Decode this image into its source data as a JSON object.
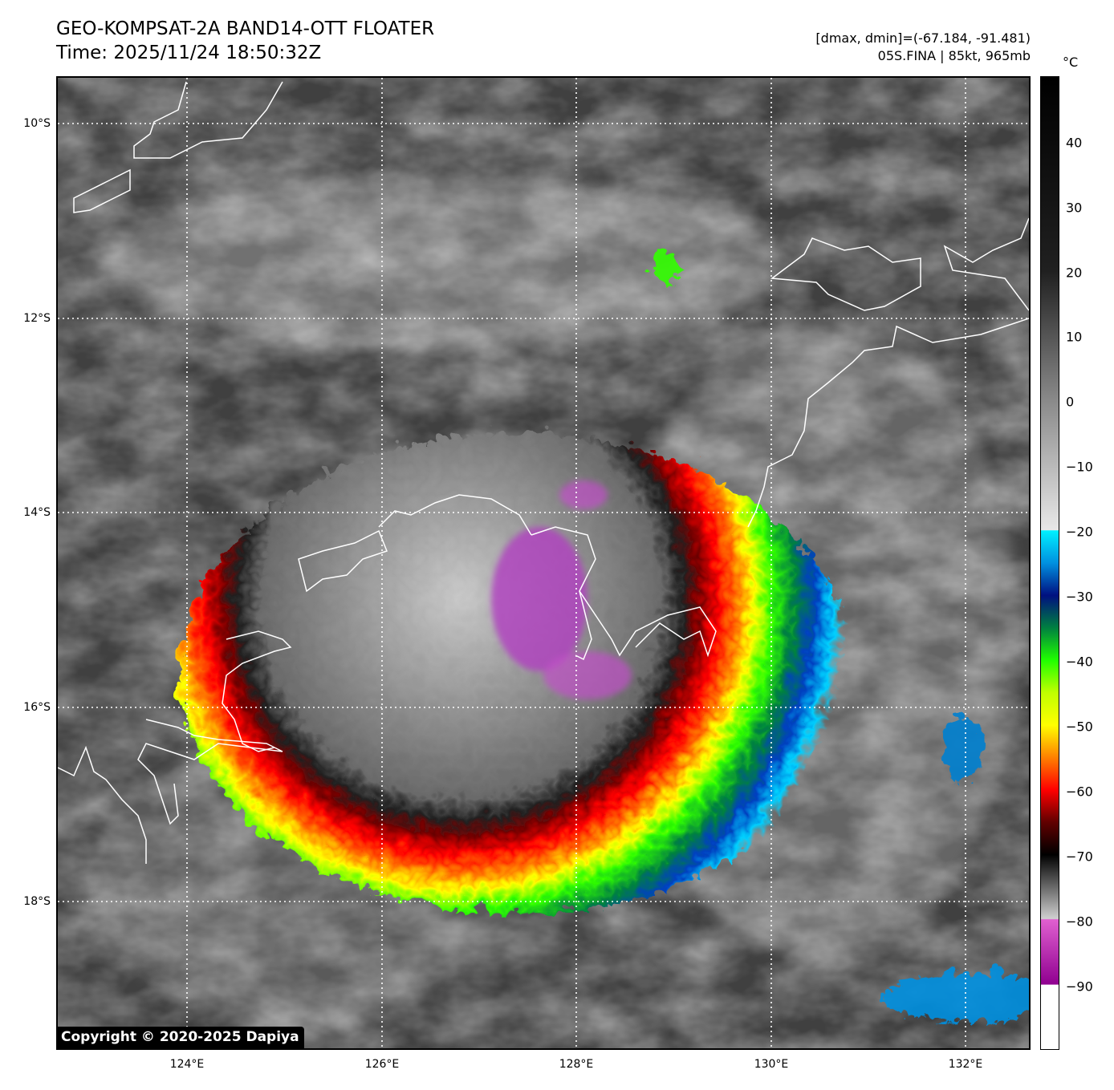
{
  "header": {
    "title": "GEO-KOMPSAT-2A BAND14-OTT FLOATER",
    "time": "Time: 2025/11/24 18:50:32Z",
    "range": "[dmax, dmin]=(-67.184, -91.481)",
    "storm": "05S.FINA | 85kt, 965mb"
  },
  "map": {
    "x_ticks": [
      "124°E",
      "126°E",
      "128°E",
      "130°E",
      "132°E"
    ],
    "y_ticks": [
      "10°S",
      "12°S",
      "14°S",
      "16°S",
      "18°S"
    ],
    "lon_range": [
      122.67,
      132.67
    ],
    "lat_range": [
      -9.53,
      -19.53
    ],
    "grid": "dotted white",
    "coastline_color": "#ffffff"
  },
  "colorbar": {
    "unit": "°C",
    "labels": [
      "40",
      "30",
      "20",
      "10",
      "0",
      "−10",
      "−20",
      "−30",
      "−40",
      "−50",
      "−60",
      "−70",
      "−80",
      "−90"
    ],
    "range": [
      -100,
      50
    ],
    "stops": [
      {
        "t": 50,
        "color": "#000000"
      },
      {
        "t": 20,
        "color": "#202020"
      },
      {
        "t": 0,
        "color": "#8a8a8a"
      },
      {
        "t": -19.9,
        "color": "#e8e8e8"
      },
      {
        "t": -20,
        "color": "#00f0ff"
      },
      {
        "t": -25,
        "color": "#0090e0"
      },
      {
        "t": -30,
        "color": "#001080"
      },
      {
        "t": -35,
        "color": "#008040"
      },
      {
        "t": -40,
        "color": "#20ff00"
      },
      {
        "t": -45,
        "color": "#c0ff00"
      },
      {
        "t": -50,
        "color": "#ffff00"
      },
      {
        "t": -55,
        "color": "#ff8000"
      },
      {
        "t": -60,
        "color": "#ff0000"
      },
      {
        "t": -65,
        "color": "#600000"
      },
      {
        "t": -70,
        "color": "#000000"
      },
      {
        "t": -79.9,
        "color": "#d0d0d0"
      },
      {
        "t": -80,
        "color": "#e060d0"
      },
      {
        "t": -90,
        "color": "#900090"
      },
      {
        "t": -90.1,
        "color": "#ffffff"
      },
      {
        "t": -100,
        "color": "#ffffff"
      }
    ]
  },
  "copyright": "Copyright © 2020-2025 Dapiya"
}
